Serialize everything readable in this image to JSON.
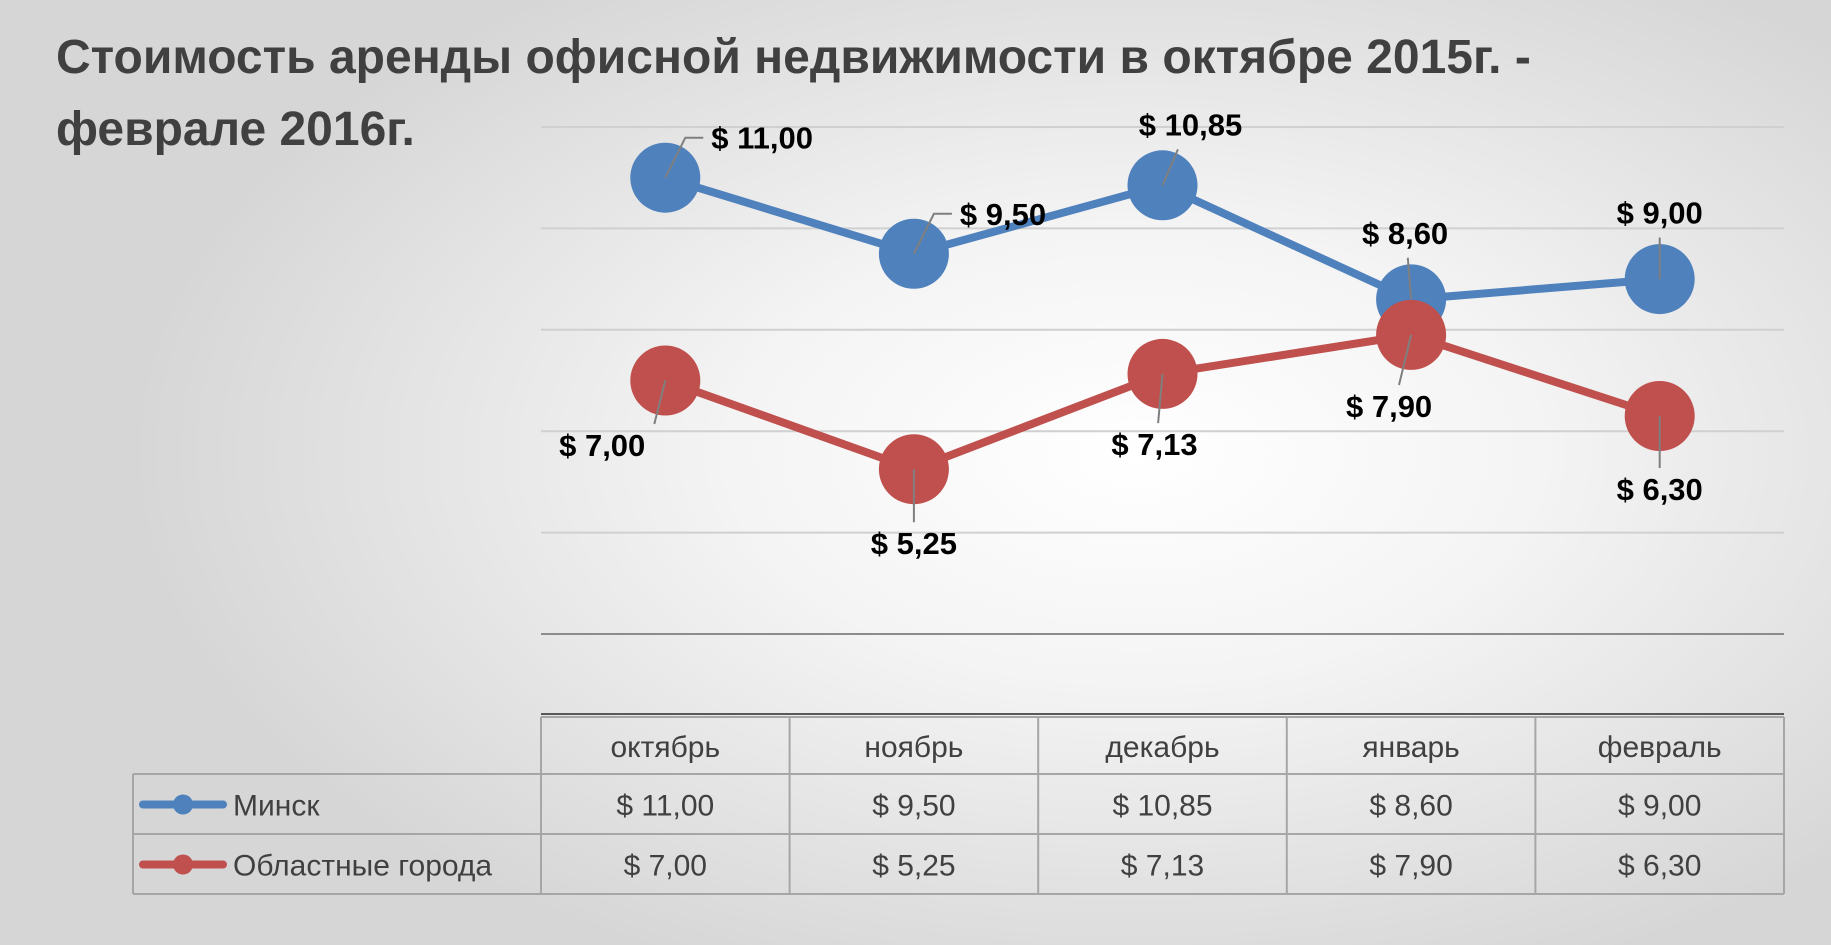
{
  "title": "Стоимость аренды офисной недвижимости в  октябре 2015г. - феврале 2016г.",
  "chart_data": {
    "type": "line",
    "title": "Стоимость аренды офисной недвижимости в  октябре 2015г. - феврале 2016г.",
    "categories": [
      "октябрь",
      "ноябрь",
      "декабрь",
      "январь",
      "февраль"
    ],
    "ylim": [
      2,
      12
    ],
    "grid": true,
    "legend": "data-table",
    "series": [
      {
        "name": "Минск",
        "color": "#4f81bd",
        "values": [
          11.0,
          9.5,
          10.85,
          8.6,
          9.0
        ],
        "labels": [
          "$ 11,00",
          "$ 9,50",
          "$ 10,85",
          "$ 8,60",
          "$ 9,00"
        ]
      },
      {
        "name": "Областные города",
        "color": "#c0504d",
        "values": [
          7.0,
          5.25,
          7.13,
          7.9,
          6.3
        ],
        "labels": [
          "$ 7,00",
          "$ 5,25",
          "$ 7,13",
          "$ 7,90",
          "$ 6,30"
        ]
      }
    ],
    "table": {
      "rows": [
        {
          "name": "Минск",
          "cells": [
            "$ 11,00",
            "$ 9,50",
            "$ 10,85",
            "$ 8,60",
            "$ 9,00"
          ]
        },
        {
          "name": "Областные города",
          "cells": [
            "$ 7,00",
            "$ 5,25",
            "$ 7,13",
            "$ 7,90",
            "$ 6,30"
          ]
        }
      ]
    }
  }
}
